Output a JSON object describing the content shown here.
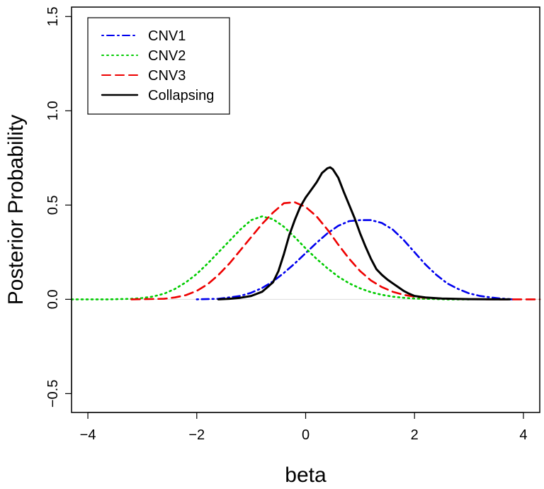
{
  "chart_data": {
    "type": "line",
    "xlabel": "beta",
    "ylabel": "Posterior Probability",
    "xlim": [
      -4.3,
      4.3
    ],
    "ylim": [
      -0.6,
      1.55
    ],
    "x_ticks": [
      -4,
      -2,
      0,
      2,
      4
    ],
    "x_tick_labels": [
      "−4",
      "−2",
      "0",
      "2",
      "4"
    ],
    "y_ticks": [
      -0.5,
      0.0,
      0.5,
      1.0,
      1.5
    ],
    "y_tick_labels": [
      "−0.5",
      "0.0",
      "0.5",
      "1.0",
      "1.5"
    ],
    "grid": false,
    "reference_line_y": 0,
    "legend_position": "top-left",
    "series": [
      {
        "name": "CNV1",
        "color": "#0000ee",
        "dash": "dotdash",
        "x": [
          -2.0,
          -1.6,
          -1.2,
          -1.0,
          -0.8,
          -0.6,
          -0.4,
          -0.2,
          0.0,
          0.2,
          0.4,
          0.6,
          0.8,
          1.0,
          1.2,
          1.4,
          1.6,
          1.8,
          2.0,
          2.2,
          2.4,
          2.6,
          2.8,
          3.0,
          3.2,
          3.4,
          3.6,
          3.8
        ],
        "y": [
          0.0,
          0.003,
          0.018,
          0.035,
          0.06,
          0.095,
          0.14,
          0.19,
          0.245,
          0.3,
          0.35,
          0.39,
          0.415,
          0.42,
          0.42,
          0.405,
          0.37,
          0.315,
          0.25,
          0.185,
          0.13,
          0.085,
          0.055,
          0.032,
          0.018,
          0.01,
          0.004,
          0.0
        ]
      },
      {
        "name": "CNV2",
        "color": "#00cc00",
        "dash": "dotted",
        "x": [
          -4.3,
          -3.6,
          -3.2,
          -3.0,
          -2.8,
          -2.6,
          -2.4,
          -2.2,
          -2.0,
          -1.8,
          -1.6,
          -1.4,
          -1.2,
          -1.0,
          -0.8,
          -0.6,
          -0.4,
          -0.2,
          0.0,
          0.2,
          0.4,
          0.6,
          0.8,
          1.0,
          1.2,
          1.4,
          1.6,
          1.8,
          2.0,
          2.3,
          2.6,
          3.0
        ],
        "y": [
          0.0,
          0.0,
          0.003,
          0.007,
          0.015,
          0.03,
          0.055,
          0.09,
          0.135,
          0.19,
          0.25,
          0.31,
          0.37,
          0.42,
          0.44,
          0.425,
          0.385,
          0.33,
          0.27,
          0.215,
          0.165,
          0.12,
          0.085,
          0.058,
          0.038,
          0.024,
          0.014,
          0.008,
          0.004,
          0.002,
          0.0,
          0.0
        ]
      },
      {
        "name": "CNV3",
        "color": "#ee0000",
        "dash": "dashed",
        "x": [
          -3.2,
          -2.6,
          -2.4,
          -2.2,
          -2.0,
          -1.8,
          -1.6,
          -1.4,
          -1.2,
          -1.0,
          -0.8,
          -0.6,
          -0.4,
          -0.2,
          0.0,
          0.2,
          0.4,
          0.6,
          0.8,
          1.0,
          1.2,
          1.4,
          1.6,
          1.8,
          2.0,
          2.2,
          2.6,
          3.0,
          3.5,
          4.3
        ],
        "y": [
          0.0,
          0.003,
          0.01,
          0.022,
          0.045,
          0.08,
          0.13,
          0.19,
          0.26,
          0.33,
          0.4,
          0.46,
          0.51,
          0.515,
          0.49,
          0.44,
          0.37,
          0.29,
          0.215,
          0.15,
          0.1,
          0.065,
          0.04,
          0.024,
          0.014,
          0.008,
          0.003,
          0.001,
          0.0,
          0.0
        ]
      },
      {
        "name": "Collapsing",
        "color": "#000000",
        "dash": "solid",
        "x": [
          -1.6,
          -1.4,
          -1.2,
          -1.0,
          -0.8,
          -0.6,
          -0.5,
          -0.4,
          -0.3,
          -0.2,
          -0.1,
          0.0,
          0.1,
          0.2,
          0.3,
          0.4,
          0.45,
          0.5,
          0.6,
          0.7,
          0.8,
          0.9,
          1.0,
          1.1,
          1.2,
          1.3,
          1.4,
          1.5,
          1.6,
          1.7,
          1.8,
          1.9,
          2.0,
          2.2,
          2.5,
          3.0,
          3.5,
          3.75
        ],
        "y": [
          0.0,
          0.003,
          0.008,
          0.018,
          0.04,
          0.09,
          0.15,
          0.24,
          0.34,
          0.42,
          0.49,
          0.54,
          0.58,
          0.62,
          0.67,
          0.695,
          0.7,
          0.69,
          0.645,
          0.57,
          0.5,
          0.43,
          0.35,
          0.28,
          0.215,
          0.16,
          0.13,
          0.105,
          0.085,
          0.065,
          0.045,
          0.03,
          0.018,
          0.01,
          0.004,
          0.001,
          0.0,
          0.0
        ]
      }
    ]
  }
}
